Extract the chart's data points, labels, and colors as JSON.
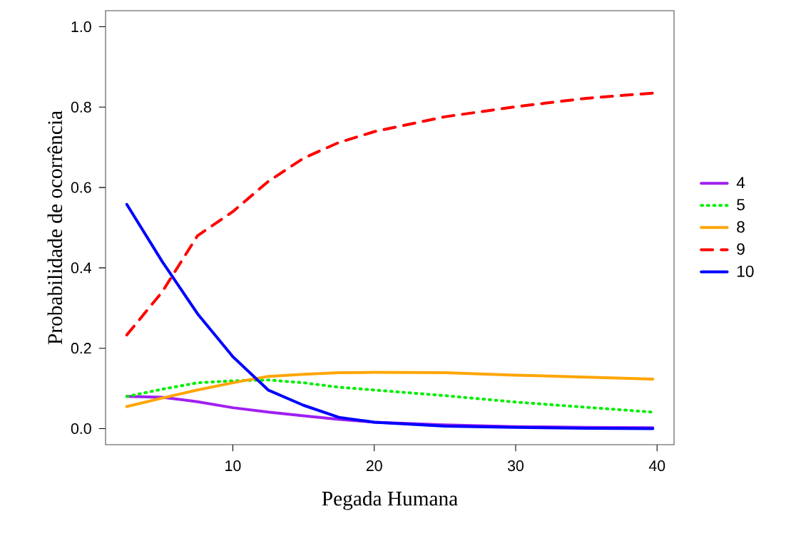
{
  "chart_data": {
    "type": "line",
    "xlabel": "Pegada Humana",
    "ylabel": "Probabilidade de ocorrência",
    "x": [
      2.5,
      5,
      7.5,
      10,
      12.5,
      15,
      17.5,
      20,
      25,
      30,
      35,
      39.7
    ],
    "series": [
      {
        "name": "4",
        "color": "#a020f0",
        "line_style": "solid",
        "values": [
          0.08,
          0.078,
          0.067,
          0.052,
          0.041,
          0.032,
          0.023,
          0.016,
          0.009,
          0.005,
          0.003,
          0.002
        ]
      },
      {
        "name": "5",
        "color": "#00ee00",
        "line_style": "dotted",
        "values": [
          0.08,
          0.098,
          0.114,
          0.119,
          0.121,
          0.114,
          0.103,
          0.096,
          0.082,
          0.066,
          0.053,
          0.041
        ]
      },
      {
        "name": "8",
        "color": "#ffa500",
        "line_style": "solid",
        "values": [
          0.055,
          0.076,
          0.096,
          0.114,
          0.13,
          0.135,
          0.139,
          0.14,
          0.139,
          0.133,
          0.128,
          0.123
        ]
      },
      {
        "name": "9",
        "color": "#ff0000",
        "line_style": "dashed",
        "values": [
          0.233,
          0.34,
          0.48,
          0.54,
          0.615,
          0.673,
          0.712,
          0.739,
          0.776,
          0.801,
          0.822,
          0.835
        ]
      },
      {
        "name": "10",
        "color": "#0000ff",
        "line_style": "solid",
        "values": [
          0.558,
          0.416,
          0.286,
          0.179,
          0.096,
          0.058,
          0.028,
          0.016,
          0.006,
          0.003,
          0.001,
          0.0
        ]
      }
    ],
    "xlim": [
      1.0,
      41.2
    ],
    "ylim": [
      -0.04,
      1.04
    ],
    "xticks": [
      10,
      20,
      30,
      40
    ],
    "yticks": [
      {
        "value": 0,
        "label": "0.0"
      },
      {
        "value": 0.2,
        "label": "0.2"
      },
      {
        "value": 0.4,
        "label": "0.4"
      },
      {
        "value": 0.6,
        "label": "0.6"
      },
      {
        "value": 0.8,
        "label": "0.8"
      },
      {
        "value": 1,
        "label": "1.0"
      }
    ],
    "grid": false,
    "legend": "right"
  }
}
